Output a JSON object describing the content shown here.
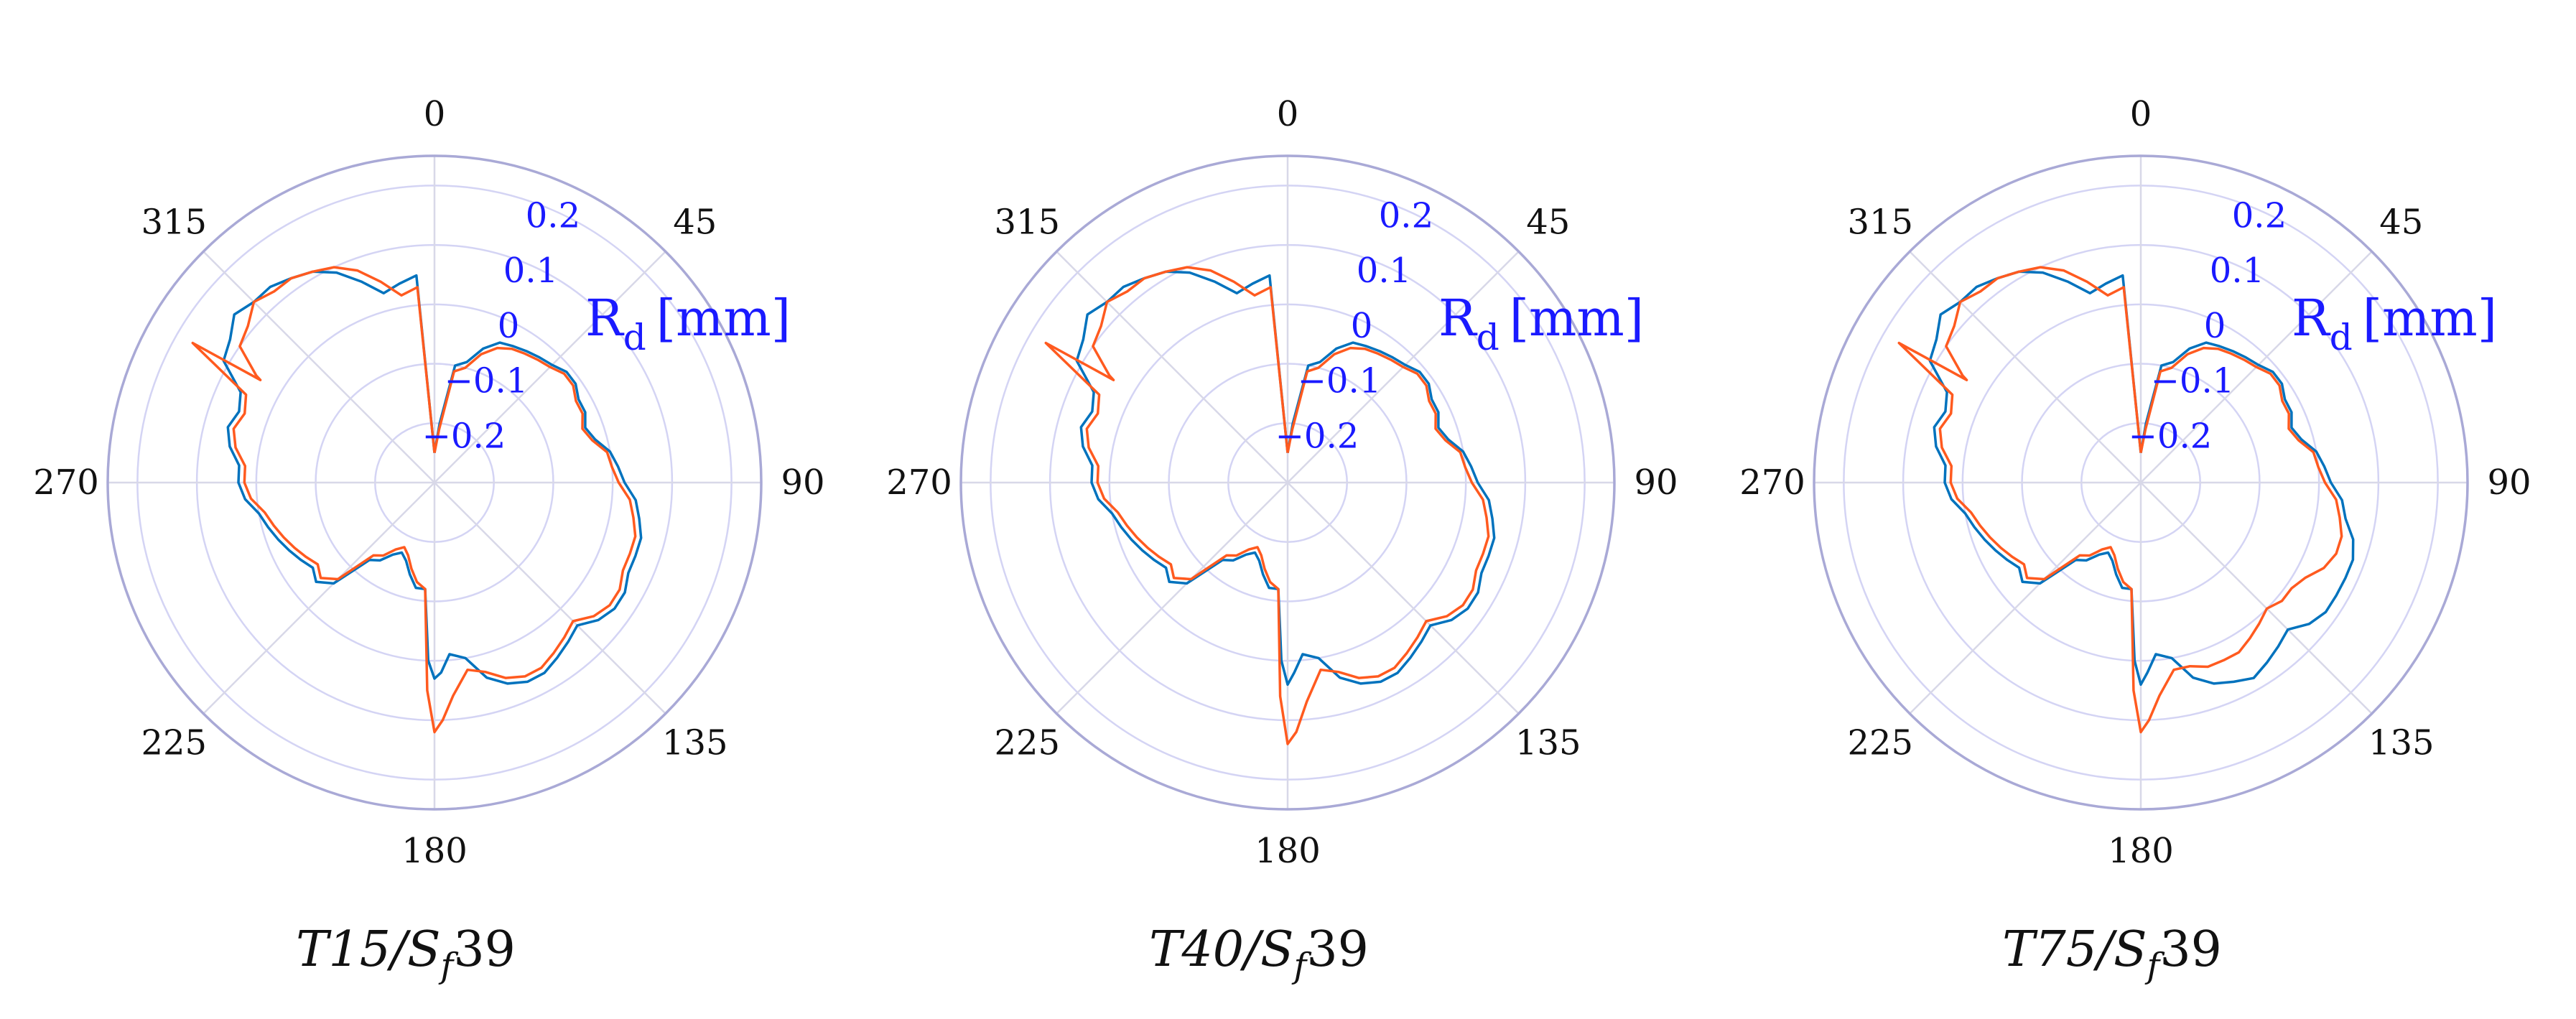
{
  "chart_data": [
    {
      "type": "polar-line",
      "caption": "T15/Sf39",
      "caption_parts": {
        "t": "T15/S",
        "sub": "f",
        "tail": "39"
      },
      "r_label": "R",
      "r_label_sub": "d",
      "r_label_unit": "[mm]",
      "theta_ticks": [
        "0",
        "45",
        "90",
        "135",
        "180",
        "225",
        "270",
        "315"
      ],
      "r_ticks": [
        "−0.2",
        "−0.1",
        "0",
        "0.1",
        "0.2"
      ],
      "r_tick_values": [
        -0.2,
        -0.1,
        0,
        0.1,
        0.2
      ],
      "rlim": [
        -0.3,
        0.25
      ],
      "theta_zero": "top",
      "theta_direction": "clockwise",
      "series": [
        {
          "name": "series-blue",
          "color": "#0072bd",
          "theta": [
            0,
            5,
            10,
            15,
            20,
            25,
            30,
            35,
            40,
            45,
            50,
            55,
            60,
            65,
            70,
            75,
            80,
            85,
            90,
            95,
            100,
            105,
            110,
            115,
            120,
            125,
            130,
            135,
            140,
            145,
            150,
            155,
            160,
            165,
            170,
            175,
            178,
            180,
            182,
            185,
            190,
            195,
            200,
            205,
            210,
            215,
            220,
            225,
            230,
            235,
            240,
            245,
            250,
            255,
            260,
            265,
            270,
            275,
            280,
            285,
            290,
            295,
            300,
            305,
            310,
            315,
            320,
            325,
            330,
            335,
            340,
            345,
            350,
            355,
            360
          ],
          "r": [
            -0.25,
            -0.2,
            -0.1,
            -0.09,
            -0.06,
            -0.04,
            -0.035,
            -0.03,
            -0.025,
            -0.02,
            -0.01,
            -0.01,
            -0.02,
            -0.02,
            -0.03,
            -0.02,
            0.0,
            0.01,
            0.02,
            0.04,
            0.05,
            0.06,
            0.06,
            0.06,
            0.07,
            0.07,
            0.06,
            0.04,
            0.05,
            0.06,
            0.07,
            0.07,
            0.06,
            0.04,
            0.0,
            -0.01,
            0.02,
            0.03,
            0.0,
            -0.12,
            -0.12,
            -0.14,
            -0.16,
            -0.17,
            -0.16,
            -0.14,
            -0.13,
            -0.06,
            -0.04,
            -0.05,
            -0.04,
            -0.03,
            -0.02,
            -0.01,
            0.0,
            0.02,
            0.03,
            0.03,
            0.05,
            0.06,
            0.05,
            0.06,
            0.11,
            0.12,
            0.14,
            0.13,
            0.13,
            0.12,
            0.11,
            0.09,
            0.06,
            0.03,
            0.04,
            0.05,
            -0.25
          ]
        },
        {
          "name": "series-orange",
          "color": "#ff5a1f",
          "theta": [
            0,
            5,
            10,
            15,
            20,
            25,
            30,
            35,
            40,
            45,
            50,
            55,
            60,
            65,
            70,
            75,
            80,
            85,
            90,
            95,
            100,
            105,
            110,
            115,
            120,
            125,
            130,
            135,
            140,
            145,
            150,
            155,
            160,
            165,
            170,
            175,
            178,
            180,
            182,
            185,
            190,
            195,
            200,
            205,
            210,
            215,
            220,
            225,
            230,
            235,
            240,
            245,
            250,
            255,
            260,
            265,
            270,
            275,
            280,
            285,
            290,
            295,
            300,
            300.5,
            301,
            305,
            310,
            315,
            320,
            325,
            330,
            335,
            340,
            345,
            350,
            355,
            360
          ],
          "r": [
            -0.25,
            -0.21,
            -0.11,
            -0.1,
            -0.07,
            -0.05,
            -0.04,
            -0.035,
            -0.03,
            -0.025,
            -0.015,
            -0.015,
            -0.025,
            -0.025,
            -0.035,
            -0.025,
            -0.005,
            0.0,
            0.01,
            0.03,
            0.04,
            0.05,
            0.05,
            0.05,
            0.06,
            0.06,
            0.05,
            0.03,
            0.04,
            0.05,
            0.06,
            0.06,
            0.05,
            0.03,
            0.02,
            0.06,
            0.1,
            0.12,
            0.05,
            -0.12,
            -0.13,
            -0.15,
            -0.17,
            -0.18,
            -0.17,
            -0.15,
            -0.14,
            -0.07,
            -0.05,
            -0.06,
            -0.05,
            -0.04,
            -0.03,
            -0.02,
            -0.01,
            0.01,
            0.02,
            0.02,
            0.04,
            0.05,
            0.04,
            0.05,
            0.17,
            0.04,
            0.05,
            0.1,
            0.11,
            0.13,
            0.12,
            0.12,
            0.11,
            0.1,
            0.08,
            0.05,
            0.02,
            0.03,
            -0.25
          ]
        }
      ]
    },
    {
      "type": "polar-line",
      "caption": "T40/Sf39",
      "caption_parts": {
        "t": "T40/S",
        "sub": "f",
        "tail": "39"
      },
      "r_label": "R",
      "r_label_sub": "d",
      "r_label_unit": "[mm]",
      "theta_ticks": [
        "0",
        "45",
        "90",
        "135",
        "180",
        "225",
        "270",
        "315"
      ],
      "r_ticks": [
        "−0.2",
        "−0.1",
        "0",
        "0.1",
        "0.2"
      ],
      "r_tick_values": [
        -0.2,
        -0.1,
        0,
        0.1,
        0.2
      ],
      "rlim": [
        -0.3,
        0.25
      ],
      "theta_zero": "top",
      "theta_direction": "clockwise",
      "series": [
        {
          "name": "series-blue",
          "color": "#0072bd",
          "theta": [
            0,
            5,
            10,
            15,
            20,
            25,
            30,
            35,
            40,
            45,
            50,
            55,
            60,
            65,
            70,
            75,
            80,
            85,
            90,
            95,
            100,
            105,
            110,
            115,
            120,
            125,
            130,
            135,
            140,
            145,
            150,
            155,
            160,
            165,
            170,
            175,
            178,
            180,
            182,
            185,
            190,
            195,
            200,
            205,
            210,
            215,
            220,
            225,
            230,
            235,
            240,
            245,
            250,
            255,
            260,
            265,
            270,
            275,
            280,
            285,
            290,
            295,
            300,
            305,
            310,
            315,
            320,
            325,
            330,
            335,
            340,
            345,
            350,
            355,
            360
          ],
          "r": [
            -0.25,
            -0.2,
            -0.1,
            -0.09,
            -0.06,
            -0.04,
            -0.035,
            -0.03,
            -0.025,
            -0.02,
            -0.01,
            -0.01,
            -0.02,
            -0.02,
            -0.03,
            -0.02,
            0.0,
            0.01,
            0.02,
            0.04,
            0.05,
            0.06,
            0.06,
            0.06,
            0.07,
            0.07,
            0.06,
            0.04,
            0.05,
            0.06,
            0.07,
            0.07,
            0.06,
            0.04,
            0.0,
            -0.01,
            0.02,
            0.04,
            0.0,
            -0.12,
            -0.12,
            -0.14,
            -0.16,
            -0.17,
            -0.16,
            -0.14,
            -0.13,
            -0.06,
            -0.04,
            -0.05,
            -0.04,
            -0.03,
            -0.02,
            -0.01,
            0.0,
            0.02,
            0.03,
            0.03,
            0.05,
            0.06,
            0.05,
            0.06,
            0.11,
            0.12,
            0.14,
            0.13,
            0.13,
            0.12,
            0.11,
            0.09,
            0.06,
            0.03,
            0.04,
            0.05,
            -0.25
          ]
        },
        {
          "name": "series-orange",
          "color": "#ff5a1f",
          "theta": [
            0,
            5,
            10,
            15,
            20,
            25,
            30,
            35,
            40,
            45,
            50,
            55,
            60,
            65,
            70,
            75,
            80,
            85,
            90,
            95,
            100,
            105,
            110,
            115,
            120,
            125,
            130,
            135,
            140,
            145,
            150,
            155,
            160,
            165,
            170,
            175,
            178,
            180,
            182,
            185,
            190,
            195,
            200,
            205,
            210,
            215,
            220,
            225,
            230,
            235,
            240,
            245,
            250,
            255,
            260,
            265,
            270,
            275,
            280,
            285,
            290,
            295,
            300,
            300.5,
            301,
            305,
            310,
            315,
            320,
            325,
            330,
            335,
            340,
            345,
            350,
            355,
            360
          ],
          "r": [
            -0.25,
            -0.21,
            -0.11,
            -0.1,
            -0.07,
            -0.05,
            -0.04,
            -0.035,
            -0.03,
            -0.025,
            -0.015,
            -0.015,
            -0.025,
            -0.025,
            -0.035,
            -0.025,
            -0.005,
            0.0,
            0.01,
            0.03,
            0.04,
            0.05,
            0.05,
            0.05,
            0.06,
            0.06,
            0.05,
            0.03,
            0.04,
            0.05,
            0.06,
            0.06,
            0.05,
            0.03,
            0.02,
            0.07,
            0.12,
            0.14,
            0.06,
            -0.12,
            -0.13,
            -0.15,
            -0.17,
            -0.18,
            -0.17,
            -0.15,
            -0.14,
            -0.07,
            -0.05,
            -0.06,
            -0.05,
            -0.04,
            -0.03,
            -0.02,
            -0.01,
            0.01,
            0.02,
            0.02,
            0.04,
            0.05,
            0.04,
            0.05,
            0.17,
            0.04,
            0.05,
            0.1,
            0.11,
            0.13,
            0.12,
            0.12,
            0.11,
            0.1,
            0.08,
            0.05,
            0.02,
            0.03,
            -0.25
          ]
        }
      ]
    },
    {
      "type": "polar-line",
      "caption": "T75/Sf39",
      "caption_parts": {
        "t": "T75/S",
        "sub": "f",
        "tail": "39"
      },
      "r_label": "R",
      "r_label_sub": "d",
      "r_label_unit": "[mm]",
      "theta_ticks": [
        "0",
        "45",
        "90",
        "135",
        "180",
        "225",
        "270",
        "315"
      ],
      "r_ticks": [
        "−0.2",
        "−0.1",
        "0",
        "0.1",
        "0.2"
      ],
      "r_tick_values": [
        -0.2,
        -0.1,
        0,
        0.1,
        0.2
      ],
      "rlim": [
        -0.3,
        0.25
      ],
      "theta_zero": "top",
      "theta_direction": "clockwise",
      "series": [
        {
          "name": "series-blue",
          "color": "#0072bd",
          "theta": [
            0,
            5,
            10,
            15,
            20,
            25,
            30,
            35,
            40,
            45,
            50,
            55,
            60,
            65,
            70,
            75,
            80,
            85,
            90,
            95,
            100,
            105,
            110,
            115,
            120,
            125,
            130,
            135,
            140,
            145,
            150,
            155,
            160,
            165,
            170,
            175,
            178,
            180,
            182,
            185,
            190,
            195,
            200,
            205,
            210,
            215,
            220,
            225,
            230,
            235,
            240,
            245,
            250,
            255,
            260,
            265,
            270,
            275,
            280,
            285,
            290,
            295,
            300,
            305,
            310,
            315,
            320,
            325,
            330,
            335,
            340,
            345,
            350,
            355,
            360
          ],
          "r": [
            -0.25,
            -0.2,
            -0.1,
            -0.09,
            -0.06,
            -0.04,
            -0.035,
            -0.03,
            -0.025,
            -0.02,
            -0.01,
            -0.01,
            -0.02,
            -0.02,
            -0.03,
            -0.02,
            0.0,
            0.01,
            0.02,
            0.04,
            0.05,
            0.07,
            0.08,
            0.08,
            0.08,
            0.08,
            0.07,
            0.05,
            0.06,
            0.07,
            0.08,
            0.07,
            0.06,
            0.04,
            0.0,
            -0.01,
            0.02,
            0.04,
            0.0,
            -0.12,
            -0.12,
            -0.14,
            -0.16,
            -0.17,
            -0.16,
            -0.14,
            -0.13,
            -0.06,
            -0.04,
            -0.05,
            -0.04,
            -0.03,
            -0.02,
            -0.01,
            0.0,
            0.02,
            0.03,
            0.03,
            0.05,
            0.06,
            0.05,
            0.06,
            0.11,
            0.12,
            0.14,
            0.13,
            0.13,
            0.12,
            0.11,
            0.09,
            0.06,
            0.03,
            0.04,
            0.05,
            -0.25
          ]
        },
        {
          "name": "series-orange",
          "color": "#ff5a1f",
          "theta": [
            0,
            5,
            10,
            15,
            20,
            25,
            30,
            35,
            40,
            45,
            50,
            55,
            60,
            65,
            70,
            75,
            80,
            85,
            90,
            95,
            100,
            105,
            110,
            115,
            120,
            125,
            130,
            135,
            140,
            145,
            150,
            155,
            160,
            165,
            170,
            175,
            178,
            180,
            182,
            185,
            190,
            195,
            200,
            205,
            210,
            215,
            220,
            225,
            230,
            235,
            240,
            245,
            250,
            255,
            260,
            265,
            270,
            275,
            280,
            285,
            290,
            295,
            300,
            300.5,
            301,
            305,
            310,
            315,
            320,
            325,
            330,
            335,
            340,
            345,
            350,
            355,
            360
          ],
          "r": [
            -0.25,
            -0.21,
            -0.11,
            -0.1,
            -0.07,
            -0.05,
            -0.04,
            -0.035,
            -0.03,
            -0.025,
            -0.015,
            -0.015,
            -0.025,
            -0.025,
            -0.035,
            -0.025,
            -0.005,
            0.0,
            0.01,
            0.03,
            0.04,
            0.05,
            0.05,
            0.04,
            0.02,
            0.01,
            0.01,
            0.0,
            0.01,
            0.02,
            0.03,
            0.03,
            0.03,
            0.02,
            0.02,
            0.06,
            0.1,
            0.12,
            0.05,
            -0.12,
            -0.13,
            -0.15,
            -0.17,
            -0.18,
            -0.17,
            -0.15,
            -0.14,
            -0.07,
            -0.05,
            -0.06,
            -0.05,
            -0.04,
            -0.03,
            -0.02,
            -0.01,
            0.01,
            0.02,
            0.02,
            0.04,
            0.05,
            0.04,
            0.05,
            0.17,
            0.04,
            0.05,
            0.1,
            0.11,
            0.13,
            0.12,
            0.12,
            0.11,
            0.1,
            0.08,
            0.05,
            0.02,
            0.03,
            -0.25
          ]
        }
      ]
    }
  ]
}
